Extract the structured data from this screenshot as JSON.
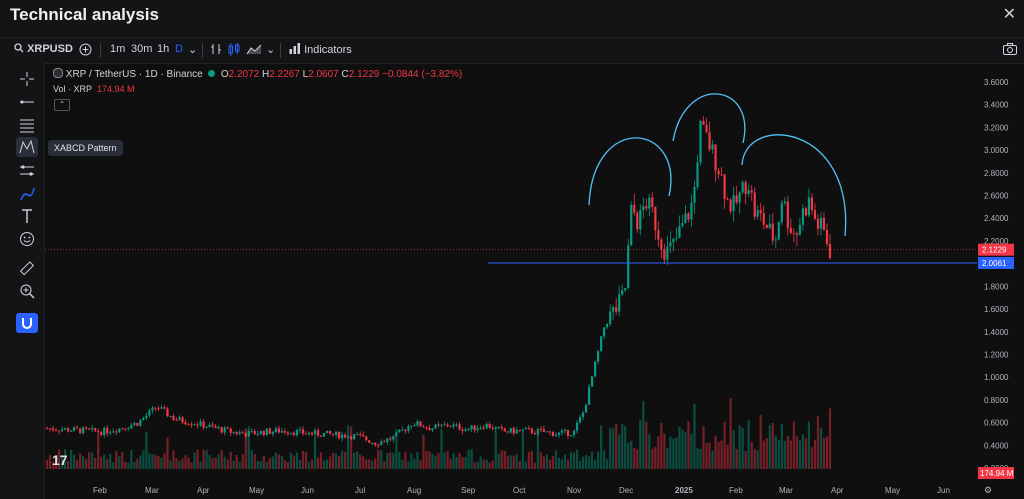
{
  "window": {
    "title": "Technical analysis",
    "close_label": "✕"
  },
  "toolbar": {
    "symbol": "XRPUSD",
    "intervals": [
      "1m",
      "30m",
      "1h",
      "D"
    ],
    "active_interval": "D",
    "indicators_label": "Indicators"
  },
  "legend": {
    "pair": "XRP / TetherUS · 1D · Binance",
    "open_label": "O",
    "open": "2.2072",
    "high_label": "H",
    "high": "2.2267",
    "low_label": "L",
    "low": "2.0607",
    "close_label": "C",
    "close": "2.1229",
    "change": "−0.0844 (−3.82%)"
  },
  "volume_legend": {
    "label": "Vol · XRP",
    "value": "174.94 M"
  },
  "tooltip": "XABCD Pattern",
  "icons": [
    "crosshair-icon",
    "trend-line-icon",
    "fib-icon",
    "pattern-icon",
    "projection-icon",
    "brush-icon",
    "text-icon",
    "emoji-icon",
    "ruler-icon",
    "zoom-icon",
    "magnet-icon",
    "camera-icon",
    "settings-icon",
    "add-icon",
    "candles-icon",
    "area-icon",
    "indicators-icon"
  ],
  "colors": {
    "up": "#089981",
    "down": "#f23645",
    "line": "#2962ff",
    "arc": "#4fc3f7",
    "bg": "#0f0f10"
  },
  "chart_data": {
    "type": "candlestick",
    "symbol": "XRP / TetherUS",
    "timeframe": "1D",
    "exchange": "Binance",
    "x_ticks": [
      "Feb",
      "Mar",
      "Apr",
      "May",
      "Jun",
      "Jul",
      "Aug",
      "Sep",
      "Oct",
      "Nov",
      "Dec",
      "2025",
      "Feb",
      "Mar",
      "Apr",
      "May",
      "Jun"
    ],
    "y_ticks": [
      "3.6000",
      "3.4000",
      "3.2000",
      "3.0000",
      "2.8000",
      "2.6000",
      "2.4000",
      "2.2000",
      "2.0000",
      "1.8000",
      "1.6000",
      "1.4000",
      "1.2000",
      "1.0000",
      "0.8000",
      "0.6000",
      "0.4000",
      "0.2000"
    ],
    "ylim": [
      0.2,
      3.6
    ],
    "close_approx": [
      0.55,
      0.54,
      0.53,
      0.52,
      0.55,
      0.6,
      0.74,
      0.63,
      0.6,
      0.56,
      0.52,
      0.5,
      0.52,
      0.53,
      0.51,
      0.5,
      0.49,
      0.48,
      0.42,
      0.47,
      0.6,
      0.55,
      0.58,
      0.54,
      0.58,
      0.52,
      0.53,
      0.52,
      0.5,
      0.52,
      0.58,
      0.7,
      0.95,
      1.2,
      1.45,
      1.55,
      1.62,
      1.75,
      2.5,
      2.35,
      2.55,
      2.45,
      2.25,
      2.1,
      2.15,
      2.28,
      2.4,
      2.55,
      3.2,
      3.1,
      2.95,
      2.8,
      2.55,
      2.5,
      2.62,
      2.75,
      2.45,
      2.4,
      2.3,
      2.2,
      2.6,
      2.35,
      2.25,
      2.45,
      2.55,
      2.35,
      2.3,
      2.12
    ],
    "horizontal_line": {
      "value": 2.0061,
      "label": "2.0061"
    },
    "last_price": {
      "value": 2.1229,
      "label": "2.1229"
    },
    "volume_label": "174.94 M",
    "annotations": [
      "left shoulder arc",
      "head arc",
      "right shoulder arc"
    ]
  }
}
